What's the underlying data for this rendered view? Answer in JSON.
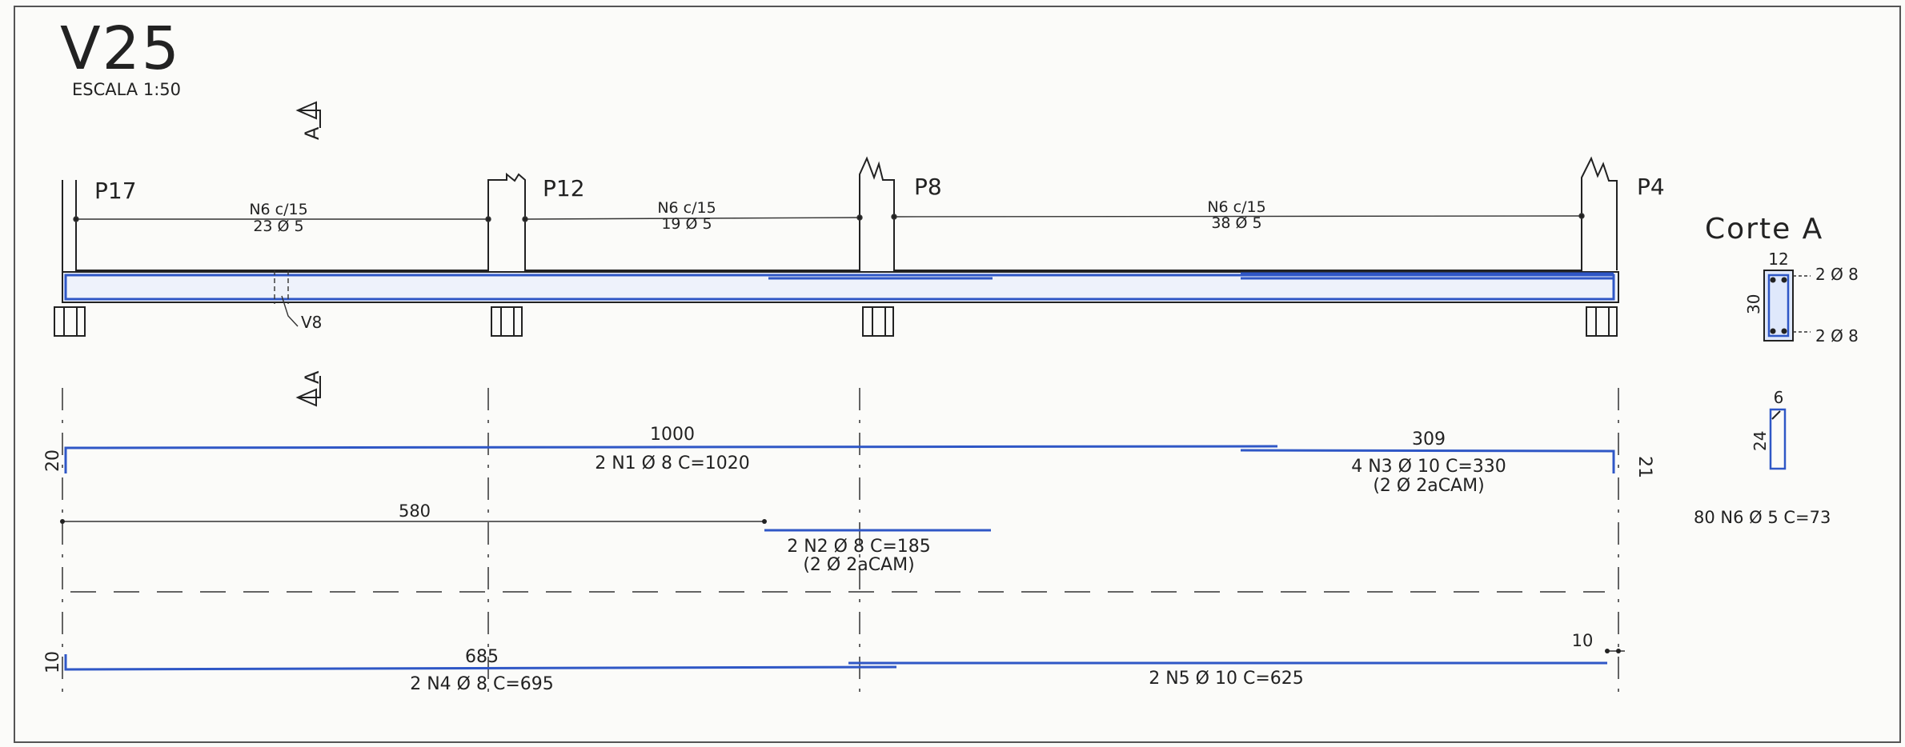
{
  "title": "V25",
  "scale_text": "ESCALA 1:50",
  "section_mark": "A",
  "pillars": [
    "P17",
    "P12",
    "P8",
    "P4"
  ],
  "crossing_beam": "V8",
  "stirrups": [
    {
      "line1": "N6 c/15",
      "line2": "23 Ø 5"
    },
    {
      "line1": "N6 c/15",
      "line2": "19 Ø 5"
    },
    {
      "line1": "N6 c/15",
      "line2": "38 Ø 5"
    }
  ],
  "section": {
    "title": "Corte A",
    "width": "12",
    "height": "30",
    "top_bars": "2 Ø 8",
    "bottom_bars": "2 Ø 8"
  },
  "stirrup_detail": {
    "width": "6",
    "height": "24",
    "label": "80 N6 Ø 5 C=73"
  },
  "bars": {
    "n1": {
      "length": "1000",
      "label": "2 N1 Ø 8 C=1020",
      "hook": "20"
    },
    "n3": {
      "length": "309",
      "label": "4 N3 Ø 10 C=330",
      "note": "(2 Ø 2aCAM)",
      "hook": "21"
    },
    "n2": {
      "offset": "580",
      "label": "2 N2 Ø 8 C=185",
      "note": "(2 Ø 2aCAM)"
    },
    "n4": {
      "length": "685",
      "label": "2 N4 Ø 8 C=695",
      "hook": "10"
    },
    "n5": {
      "label": "2 N5 Ø 10 C=625",
      "anchor": "10"
    }
  }
}
